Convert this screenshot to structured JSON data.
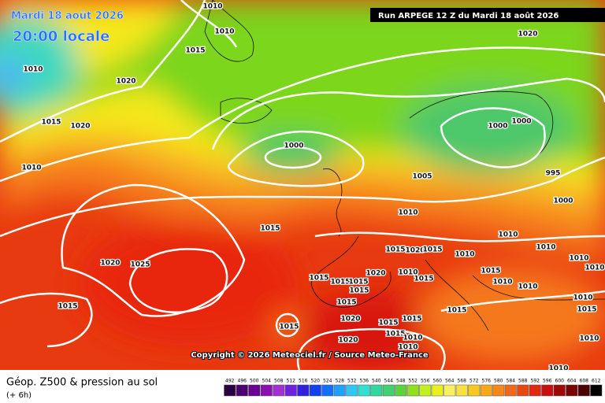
{
  "header": {
    "title": "Mardi 18 août 2026",
    "time": "20:00 locale",
    "run": "Run ARPEGE 12 Z du Mardi 18 août 2026"
  },
  "copyright": "Copyright © 2026 Meteociel.fr / Source Meteo-France",
  "legend": {
    "title": "Géop. Z500 & pression au sol",
    "subtitle": "(+ 6h)",
    "scale": [
      492,
      496,
      500,
      504,
      508,
      512,
      516,
      520,
      524,
      528,
      532,
      536,
      540,
      544,
      548,
      552,
      556,
      560,
      564,
      568,
      572,
      576,
      580,
      584,
      588,
      592,
      596,
      600,
      604,
      608,
      612
    ]
  },
  "isobar_labels": [
    1010,
    1010,
    1015,
    1020,
    1010,
    1015,
    1020,
    1010,
    1020,
    1000,
    1000,
    1000,
    995,
    1000,
    1005,
    1010,
    1015,
    1010,
    1010,
    1010,
    1015,
    1020,
    1015,
    1010,
    1015,
    1010,
    1010,
    1010,
    1020,
    1025,
    1015,
    1015,
    1015,
    1020,
    1010,
    1015,
    1015,
    1015,
    1015,
    1015,
    1015,
    1010,
    1015,
    1020,
    1015,
    1015,
    1015,
    1010,
    1020,
    1010,
    1010,
    1010
  ]
}
